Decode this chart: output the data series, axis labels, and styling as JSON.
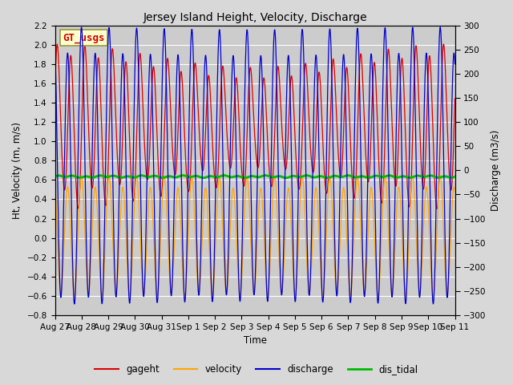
{
  "title": "Jersey Island Height, Velocity, Discharge",
  "xlabel": "Time",
  "ylabel_left": "Ht, Velocity (m, m/s)",
  "ylabel_right": "Discharge (m3/s)",
  "ylim_left": [
    -0.8,
    2.2
  ],
  "ylim_right": [
    -300,
    300
  ],
  "yticks_left": [
    -0.8,
    -0.6,
    -0.4,
    -0.2,
    0.0,
    0.2,
    0.4,
    0.6,
    0.8,
    1.0,
    1.2,
    1.4,
    1.6,
    1.8,
    2.0,
    2.2
  ],
  "yticks_right": [
    -300,
    -250,
    -200,
    -150,
    -100,
    -50,
    0,
    50,
    100,
    150,
    200,
    250,
    300
  ],
  "colors": {
    "gageht": "#dd0000",
    "velocity": "#ffa500",
    "discharge": "#0000cc",
    "dis_tidal": "#00bb00"
  },
  "watermark_text": "GT_usgs",
  "watermark_color": "#cc0000",
  "watermark_bg": "#ffffcc",
  "watermark_border": "#999944",
  "background_color": "#d8d8d8",
  "plot_bg_upper": "#d0d0d0",
  "plot_bg_lower": "#c8c8c8",
  "grid_color": "#ffffff",
  "x_tick_labels": [
    "Aug 27",
    "Aug 28",
    "Aug 29",
    "Aug 30",
    "Aug 31",
    "Sep 1",
    "Sep 2",
    "Sep 3",
    "Sep 4",
    "Sep 5",
    "Sep 6",
    "Sep 7",
    "Sep 8",
    "Sep 9",
    "Sep 10",
    "Sep 11"
  ]
}
